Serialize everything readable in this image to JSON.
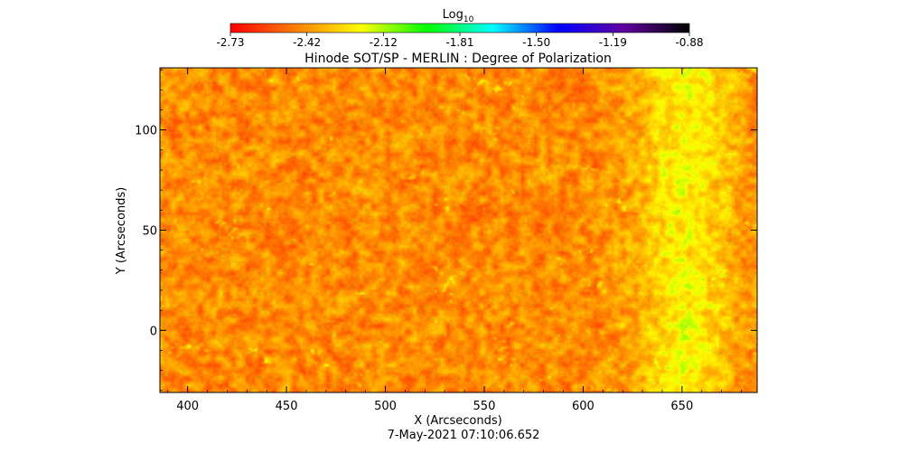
{
  "chart_data": {
    "type": "heatmap",
    "title": "Hinode SOT/SP - MERLIN : Degree of Polarization",
    "colorbar": {
      "label": "Log",
      "label_subscript": "10",
      "range": [
        -2.73,
        -0.88
      ],
      "tick_labels": [
        "-2.73",
        "-2.42",
        "-2.12",
        "-1.81",
        "-1.50",
        "-1.19",
        "-0.88"
      ],
      "colors": [
        "#ff0000",
        "#ff8000",
        "#ffff00",
        "#00ff00",
        "#00ffff",
        "#0000ff",
        "#6000a0",
        "#000000"
      ]
    },
    "xlabel": "X (Arcseconds)",
    "ylabel": "Y (Arcseconds)",
    "xlim": [
      386,
      688
    ],
    "ylim": [
      -31,
      131
    ],
    "x_ticks": [
      400,
      450,
      500,
      550,
      600,
      650
    ],
    "y_ticks": [
      0,
      50,
      100
    ],
    "x_tick_labels": [
      "400",
      "450",
      "500",
      "550",
      "600",
      "650"
    ],
    "y_tick_labels": [
      "0",
      "50",
      "100"
    ],
    "grid": false,
    "dominant_value_range": [
      -2.73,
      -2.3
    ],
    "notes_visible": [],
    "timestamp": "7-May-2021 07:10:06.652"
  }
}
